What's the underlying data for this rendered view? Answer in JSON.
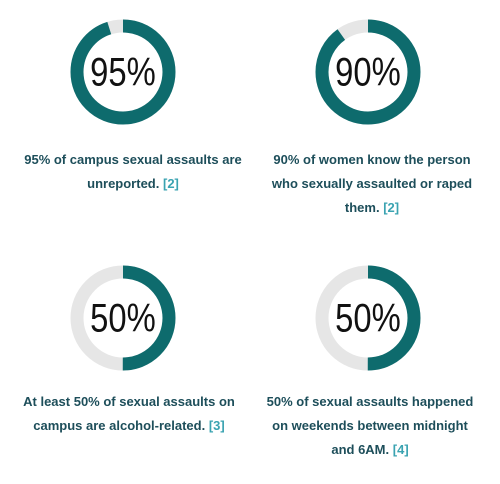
{
  "chart_data": [
    {
      "type": "donut",
      "values": [
        95
      ],
      "value_labels": [
        "95%"
      ],
      "color": "#0e6b6d",
      "caption": "95% of campus sexual assaults are unreported.",
      "reference": "[2]"
    },
    {
      "type": "donut",
      "values": [
        90
      ],
      "value_labels": [
        "90%"
      ],
      "color": "#0e6b6d",
      "caption": "90% of women know the person who sexually assaulted or raped them.",
      "reference": "[2]"
    },
    {
      "type": "donut",
      "values": [
        50
      ],
      "value_labels": [
        "50%"
      ],
      "color": "#0e6b6d",
      "caption": "At least 50% of sexual assaults on campus are alcohol-related.",
      "reference": "[3]"
    },
    {
      "type": "donut",
      "values": [
        50
      ],
      "value_labels": [
        "50%"
      ],
      "color": "#0e6b6d",
      "caption": "50% of sexual assaults happened on weekends between midnight and 6AM.",
      "reference": "[4]"
    }
  ]
}
